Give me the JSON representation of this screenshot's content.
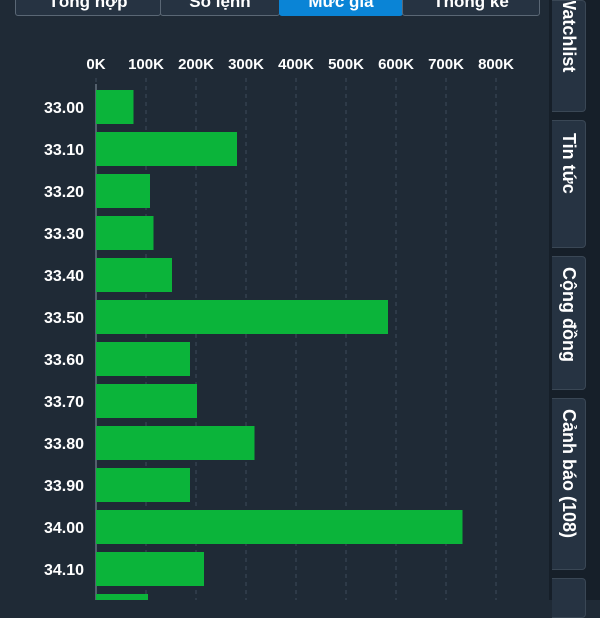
{
  "tabs": [
    {
      "label": "Tổng hợp",
      "active": false
    },
    {
      "label": "Sổ lệnh",
      "active": false
    },
    {
      "label": "Mức giá",
      "active": true
    },
    {
      "label": "Thống kê",
      "active": false
    }
  ],
  "sidebar": {
    "items": [
      {
        "label": "Watchlist"
      },
      {
        "label": "Tin tức"
      },
      {
        "label": "Cộng đồng"
      },
      {
        "label": "Cảnh báo (108)"
      }
    ]
  },
  "colors": {
    "bar": "#0bb43a",
    "background": "#1f2a36",
    "active_tab": "#0a84d6"
  },
  "chart_data": {
    "type": "bar",
    "orientation": "horizontal",
    "x_tick_labels": [
      "0K",
      "100K",
      "200K",
      "300K",
      "400K",
      "500K",
      "600K",
      "700K",
      "800K"
    ],
    "xlim": [
      0,
      800000
    ],
    "categories": [
      "33.00",
      "33.10",
      "33.20",
      "33.30",
      "33.40",
      "33.50",
      "33.60",
      "33.70",
      "33.80",
      "33.90",
      "34.00",
      "34.10"
    ],
    "values": [
      75000,
      282000,
      108000,
      115000,
      152000,
      584000,
      188000,
      202000,
      317000,
      188000,
      733000,
      216000
    ],
    "grid": true,
    "axis_position": "top"
  }
}
